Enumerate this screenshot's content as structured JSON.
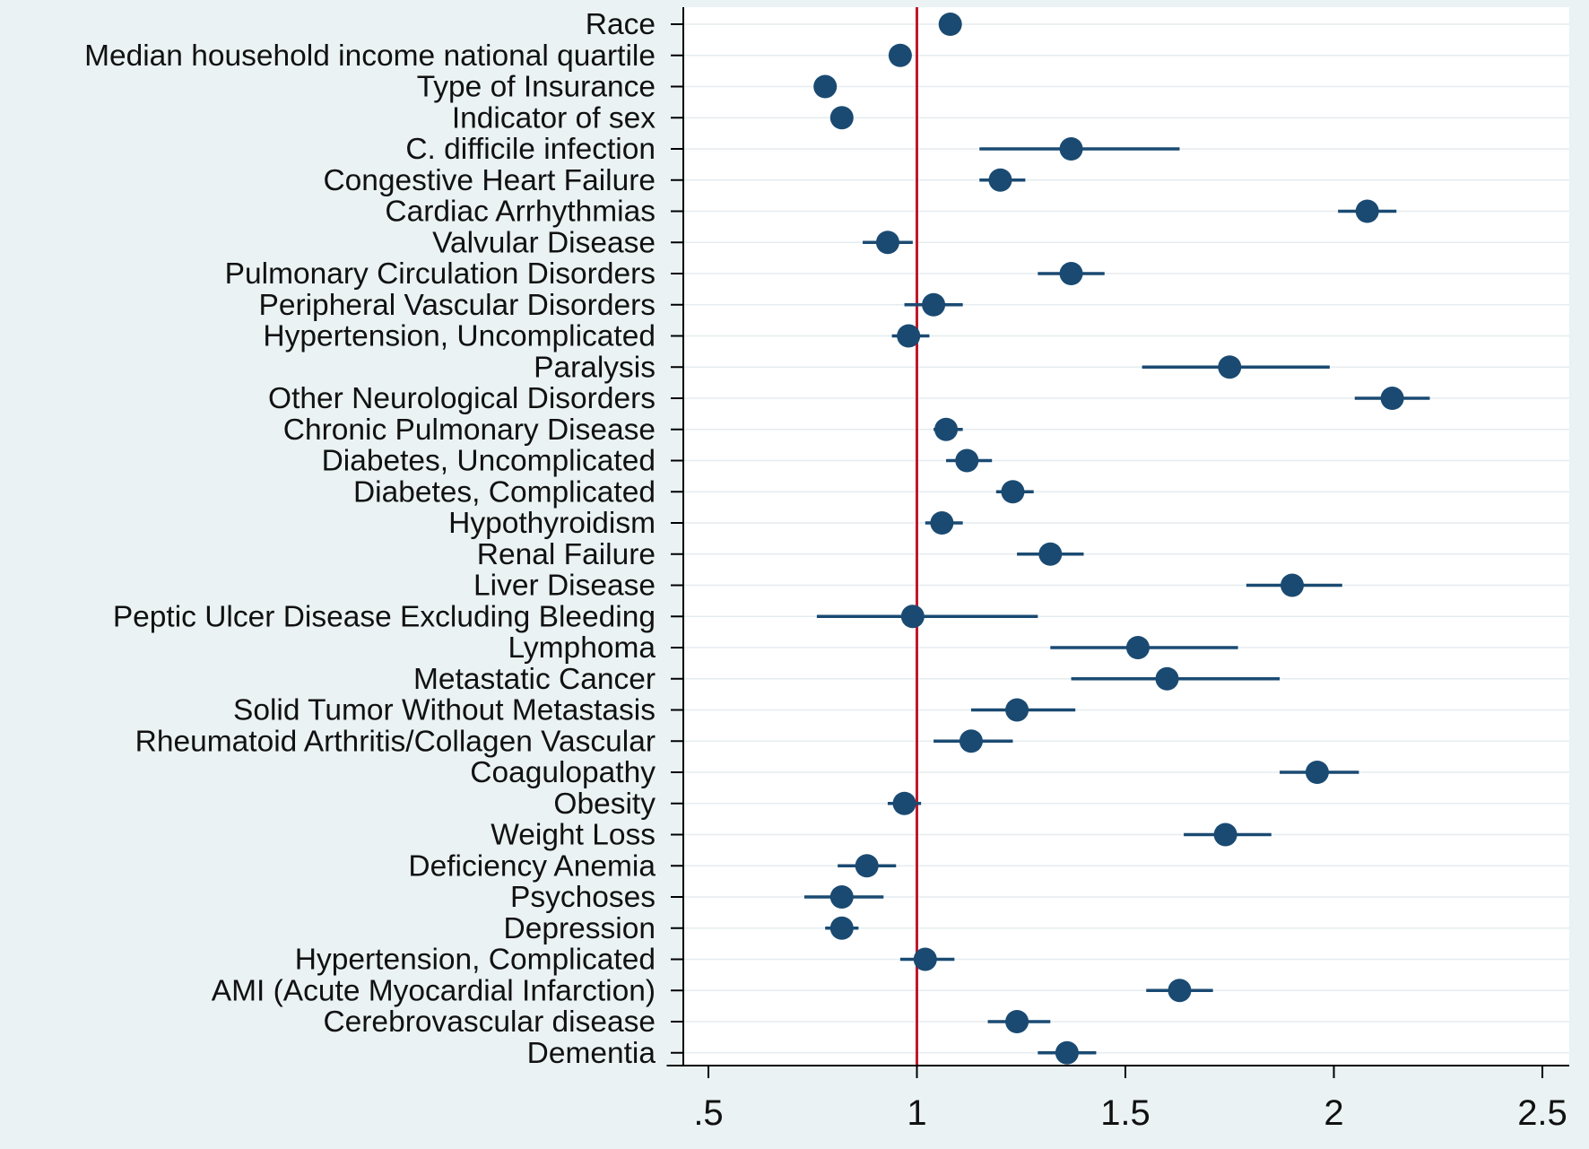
{
  "chart_data": {
    "type": "scatter",
    "subtype": "forest-plot",
    "title": "",
    "xlabel": "",
    "ylabel": "",
    "xlim": [
      0.4,
      2.55
    ],
    "x_ticks": [
      0.5,
      1,
      1.5,
      2,
      2.5
    ],
    "x_tick_labels": [
      ".5",
      "1",
      "1.5",
      "2",
      "2.5"
    ],
    "reference_line": 1,
    "grid": "horizontal",
    "legend": "none",
    "colors": {
      "background": "#eaf2f3",
      "plot_area": "#ffffff",
      "marker": "#1a4a72",
      "reference_line": "#c0182b",
      "grid": "#e5ecef",
      "axis": "#000000"
    },
    "rows": [
      {
        "label": "Race",
        "estimate": 1.08,
        "ci_low": null,
        "ci_high": null
      },
      {
        "label": "Median household income national quartile",
        "estimate": 0.96,
        "ci_low": null,
        "ci_high": null
      },
      {
        "label": "Type of Insurance",
        "estimate": 0.78,
        "ci_low": null,
        "ci_high": null
      },
      {
        "label": "Indicator of sex",
        "estimate": 0.82,
        "ci_low": null,
        "ci_high": null
      },
      {
        "label": "C. difficile infection",
        "estimate": 1.37,
        "ci_low": 1.15,
        "ci_high": 1.63
      },
      {
        "label": "Congestive Heart Failure",
        "estimate": 1.2,
        "ci_low": 1.15,
        "ci_high": 1.26
      },
      {
        "label": "Cardiac Arrhythmias",
        "estimate": 2.08,
        "ci_low": 2.01,
        "ci_high": 2.15
      },
      {
        "label": "Valvular Disease",
        "estimate": 0.93,
        "ci_low": 0.87,
        "ci_high": 0.99
      },
      {
        "label": "Pulmonary Circulation Disorders",
        "estimate": 1.37,
        "ci_low": 1.29,
        "ci_high": 1.45
      },
      {
        "label": "Peripheral Vascular Disorders",
        "estimate": 1.04,
        "ci_low": 0.97,
        "ci_high": 1.11
      },
      {
        "label": "Hypertension, Uncomplicated",
        "estimate": 0.98,
        "ci_low": 0.94,
        "ci_high": 1.03
      },
      {
        "label": "Paralysis",
        "estimate": 1.75,
        "ci_low": 1.54,
        "ci_high": 1.99
      },
      {
        "label": "Other Neurological Disorders",
        "estimate": 2.14,
        "ci_low": 2.05,
        "ci_high": 2.23
      },
      {
        "label": "Chronic Pulmonary Disease",
        "estimate": 1.07,
        "ci_low": 1.04,
        "ci_high": 1.11
      },
      {
        "label": "Diabetes, Uncomplicated",
        "estimate": 1.12,
        "ci_low": 1.07,
        "ci_high": 1.18
      },
      {
        "label": "Diabetes, Complicated",
        "estimate": 1.23,
        "ci_low": 1.19,
        "ci_high": 1.28
      },
      {
        "label": "Hypothyroidism",
        "estimate": 1.06,
        "ci_low": 1.02,
        "ci_high": 1.11
      },
      {
        "label": "Renal Failure",
        "estimate": 1.32,
        "ci_low": 1.24,
        "ci_high": 1.4
      },
      {
        "label": "Liver Disease",
        "estimate": 1.9,
        "ci_low": 1.79,
        "ci_high": 2.02
      },
      {
        "label": "Peptic Ulcer Disease Excluding Bleeding",
        "estimate": 0.99,
        "ci_low": 0.76,
        "ci_high": 1.29
      },
      {
        "label": "Lymphoma",
        "estimate": 1.53,
        "ci_low": 1.32,
        "ci_high": 1.77
      },
      {
        "label": "Metastatic Cancer",
        "estimate": 1.6,
        "ci_low": 1.37,
        "ci_high": 1.87
      },
      {
        "label": "Solid Tumor Without Metastasis",
        "estimate": 1.24,
        "ci_low": 1.13,
        "ci_high": 1.38
      },
      {
        "label": "Rheumatoid Arthritis/Collagen Vascular",
        "estimate": 1.13,
        "ci_low": 1.04,
        "ci_high": 1.23
      },
      {
        "label": "Coagulopathy",
        "estimate": 1.96,
        "ci_low": 1.87,
        "ci_high": 2.06
      },
      {
        "label": "Obesity",
        "estimate": 0.97,
        "ci_low": 0.93,
        "ci_high": 1.01
      },
      {
        "label": "Weight Loss",
        "estimate": 1.74,
        "ci_low": 1.64,
        "ci_high": 1.85
      },
      {
        "label": "Deficiency Anemia",
        "estimate": 0.88,
        "ci_low": 0.81,
        "ci_high": 0.95
      },
      {
        "label": "Psychoses",
        "estimate": 0.82,
        "ci_low": 0.73,
        "ci_high": 0.92
      },
      {
        "label": "Depression",
        "estimate": 0.82,
        "ci_low": 0.78,
        "ci_high": 0.86
      },
      {
        "label": "Hypertension, Complicated",
        "estimate": 1.02,
        "ci_low": 0.96,
        "ci_high": 1.09
      },
      {
        "label": "AMI (Acute Myocardial Infarction)",
        "estimate": 1.63,
        "ci_low": 1.55,
        "ci_high": 1.71
      },
      {
        "label": "Cerebrovascular disease",
        "estimate": 1.24,
        "ci_low": 1.17,
        "ci_high": 1.32
      },
      {
        "label": "Dementia",
        "estimate": 1.36,
        "ci_low": 1.29,
        "ci_high": 1.43
      }
    ]
  }
}
